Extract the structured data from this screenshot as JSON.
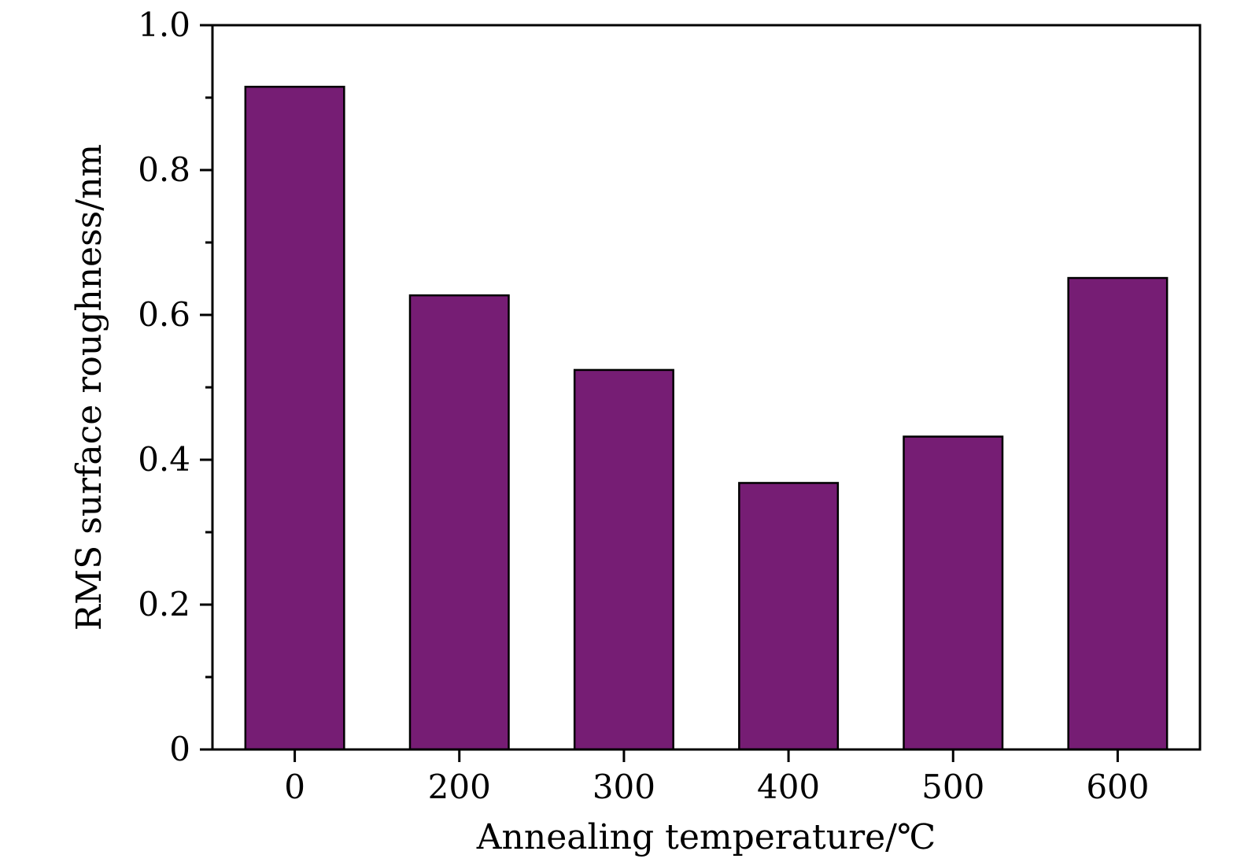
{
  "chart_data": {
    "type": "bar",
    "categories": [
      "0",
      "200",
      "300",
      "400",
      "500",
      "600"
    ],
    "values": [
      0.915,
      0.627,
      0.524,
      0.368,
      0.432,
      0.651
    ],
    "xlabel": "Annealing temperature/℃",
    "ylabel": "RMS surface roughness/nm",
    "ylim": [
      0,
      1.0
    ],
    "yticks": [
      0,
      0.2,
      0.4,
      0.6,
      0.8,
      1.0
    ],
    "ytick_labels": [
      "0",
      "0.2",
      "0.4",
      "0.6",
      "0.8",
      "1.0"
    ],
    "y_minor_ticks": [
      0.1,
      0.3,
      0.5,
      0.7,
      0.9
    ],
    "bar_color": "#761d74",
    "bar_edge_color": "#000000",
    "grid": false,
    "legend": "none"
  }
}
